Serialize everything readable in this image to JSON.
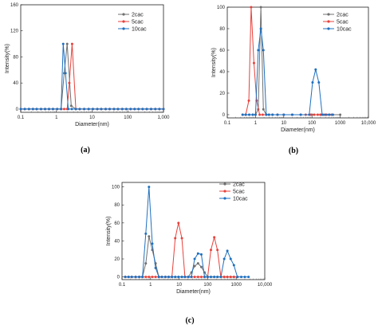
{
  "chart_data": [
    {
      "type": "line",
      "caption": "(a)",
      "xlabel": "Diameter(nm)",
      "ylabel": "Intensity(%)",
      "xscale": "log",
      "xlim": [
        0.1,
        1000
      ],
      "ylim": [
        -5,
        160
      ],
      "x_ticks": [
        0.1,
        1,
        10,
        100,
        1000
      ],
      "x_tick_labels": [
        "0.1",
        "1",
        "10",
        "100",
        "1,000"
      ],
      "y_ticks": [
        0,
        40,
        80,
        120,
        160
      ],
      "legend_position": "top-right",
      "series": [
        {
          "name": "2cac",
          "color": "#707070",
          "x": [
            0.1,
            0.13,
            0.17,
            0.22,
            0.28,
            0.37,
            0.48,
            0.62,
            0.8,
            1.05,
            1.35,
            1.65,
            2.0,
            2.6,
            3.5,
            4.5,
            6,
            8,
            10.5,
            14,
            18,
            24,
            31,
            41,
            53,
            70,
            91,
            120,
            155,
            200,
            260,
            340,
            450,
            590,
            770,
            1000
          ],
          "y": [
            0,
            0,
            0,
            0,
            0,
            0,
            0,
            0,
            0,
            0,
            0,
            55,
            100,
            5,
            0,
            0,
            0,
            0,
            0,
            0,
            0,
            0,
            0,
            0,
            0,
            0,
            0,
            0,
            0,
            0,
            0,
            0,
            0,
            0,
            0,
            0
          ]
        },
        {
          "name": "5cac",
          "color": "#e8413b",
          "x": [
            0.1,
            0.13,
            0.17,
            0.22,
            0.28,
            0.37,
            0.48,
            0.62,
            0.8,
            1.05,
            1.35,
            1.65,
            2.0,
            2.3,
            2.75,
            3.5,
            4.5,
            6,
            8,
            10.5,
            14,
            18,
            24,
            31,
            41,
            53,
            70,
            91,
            120,
            155,
            200,
            260,
            340,
            450,
            590,
            770,
            1000
          ],
          "y": [
            0,
            0,
            0,
            0,
            0,
            0,
            0,
            0,
            0,
            0,
            0,
            0,
            0,
            40,
            100,
            0,
            0,
            0,
            0,
            0,
            0,
            0,
            0,
            0,
            0,
            0,
            0,
            0,
            0,
            0,
            0,
            0,
            0,
            0,
            0,
            0,
            0
          ]
        },
        {
          "name": "10cac",
          "color": "#1e70c0",
          "x": [
            0.1,
            0.13,
            0.17,
            0.22,
            0.28,
            0.37,
            0.48,
            0.62,
            0.8,
            1.05,
            1.35,
            1.55,
            1.8,
            2.15,
            2.7,
            3.5,
            4.5,
            6,
            8,
            10.5,
            14,
            18,
            24,
            31,
            41,
            53,
            70,
            91,
            120,
            155,
            200,
            260,
            340,
            450,
            590,
            770,
            1000
          ],
          "y": [
            0,
            0,
            0,
            0,
            0,
            0,
            0,
            0,
            0,
            0,
            0,
            100,
            55,
            0,
            0,
            0,
            0,
            0,
            0,
            0,
            0,
            0,
            0,
            0,
            0,
            0,
            0,
            0,
            0,
            0,
            0,
            0,
            0,
            0,
            0,
            0,
            0
          ]
        }
      ]
    },
    {
      "type": "line",
      "caption": "(b)",
      "xlabel": "Diameter(nm)",
      "ylabel": "Intensity(%)",
      "xscale": "log",
      "xlim": [
        0.1,
        10000
      ],
      "ylim": [
        -3,
        100
      ],
      "x_ticks": [
        0.1,
        1,
        10,
        100,
        1000,
        10000
      ],
      "x_tick_labels": [
        "0.1",
        "1",
        "10",
        "100",
        "1000",
        "10,000"
      ],
      "y_ticks": [
        0,
        20,
        40,
        60,
        80,
        100
      ],
      "legend_position": "top-right",
      "series": [
        {
          "name": "2cac",
          "color": "#707070",
          "x": [
            0.35,
            0.45,
            0.6,
            0.8,
            1.0,
            1.25,
            1.55,
            1.9,
            2.4,
            3.0,
            4,
            6,
            10,
            20,
            40,
            100,
            200,
            500,
            1000
          ],
          "y": [
            0,
            0,
            0,
            0,
            0,
            5,
            100,
            5,
            0,
            0,
            0,
            0,
            0,
            0,
            0,
            0,
            0,
            0,
            0
          ]
        },
        {
          "name": "5cac",
          "color": "#e8413b",
          "x": [
            0.35,
            0.45,
            0.58,
            0.7,
            0.88,
            1.1,
            1.4,
            1.8,
            2.4,
            3.0,
            4,
            6,
            10,
            20,
            40,
            60,
            90,
            120,
            160,
            200,
            260,
            330,
            420,
            550
          ],
          "y": [
            0,
            0,
            13,
            100,
            48,
            13,
            0,
            0,
            0,
            0,
            0,
            0,
            0,
            0,
            0,
            0,
            0,
            0,
            0,
            0,
            0,
            0,
            0,
            0
          ]
        },
        {
          "name": "10cac",
          "color": "#1e70c0",
          "x": [
            0.35,
            0.45,
            0.6,
            0.8,
            1.0,
            1.25,
            1.55,
            1.9,
            2.4,
            3.0,
            4,
            6,
            10,
            20,
            40,
            80,
            105,
            135,
            175,
            230,
            300,
            400,
            550
          ],
          "y": [
            0,
            0,
            0,
            0,
            0,
            60,
            80,
            60,
            0,
            0,
            0,
            0,
            0,
            0,
            0,
            0,
            30,
            42,
            30,
            0,
            0,
            0,
            0
          ]
        }
      ]
    },
    {
      "type": "line",
      "caption": "(c)",
      "xlabel": "Diameter(nm)",
      "ylabel": "Intensity(%)",
      "xscale": "log",
      "xlim": [
        0.1,
        10000
      ],
      "ylim": [
        -3,
        105
      ],
      "x_ticks": [
        0.1,
        1,
        10,
        100,
        1000,
        10000
      ],
      "x_tick_labels": [
        "0.1",
        "1",
        "10",
        "100",
        "1000",
        "10,000"
      ],
      "y_ticks": [
        0,
        20,
        40,
        60,
        80,
        100
      ],
      "legend_position": "top-right",
      "series": [
        {
          "name": "2cac",
          "color": "#707070",
          "x": [
            0.13,
            0.17,
            0.22,
            0.3,
            0.4,
            0.52,
            0.68,
            0.88,
            1.15,
            1.5,
            1.95,
            2.5,
            3.3,
            4.3,
            5.6,
            7.3,
            9.5,
            12.5,
            16,
            21,
            27,
            35,
            46,
            60,
            78,
            100,
            130,
            170,
            220,
            290,
            380,
            490,
            640,
            830,
            1100
          ],
          "y": [
            0,
            0,
            0,
            0,
            0,
            0,
            15,
            45,
            30,
            15,
            0,
            0,
            0,
            0,
            0,
            0,
            0,
            0,
            0,
            0,
            5,
            12,
            15,
            11,
            5,
            0,
            0,
            0,
            0,
            0,
            0,
            0,
            0,
            0,
            0
          ]
        },
        {
          "name": "5cac",
          "color": "#e8413b",
          "x": [
            0.13,
            0.17,
            0.22,
            0.3,
            0.4,
            0.52,
            0.68,
            0.88,
            1.15,
            1.5,
            1.95,
            2.5,
            3.3,
            4.3,
            5.6,
            7.3,
            9.5,
            12.5,
            16,
            21,
            27,
            35,
            46,
            60,
            78,
            100,
            130,
            170,
            220,
            290,
            380,
            490,
            640,
            830,
            1100
          ],
          "y": [
            0,
            0,
            0,
            0,
            0,
            0,
            0,
            0,
            0,
            0,
            0,
            0,
            0,
            0,
            0,
            43,
            60,
            43,
            0,
            0,
            0,
            0,
            0,
            0,
            0,
            0,
            30,
            44,
            30,
            0,
            0,
            0,
            0,
            0,
            0
          ]
        },
        {
          "name": "10cac",
          "color": "#1e70c0",
          "x": [
            0.13,
            0.17,
            0.22,
            0.3,
            0.4,
            0.52,
            0.68,
            0.88,
            1.15,
            1.5,
            1.95,
            2.5,
            3.3,
            4.3,
            5.6,
            7.3,
            9.5,
            12.5,
            16,
            21,
            27,
            35,
            46,
            60,
            78,
            100,
            130,
            170,
            220,
            290,
            380,
            490,
            640,
            830,
            1100,
            1500,
            2000,
            2700
          ],
          "y": [
            0,
            0,
            0,
            0,
            0,
            0,
            48,
            100,
            37,
            10,
            0,
            0,
            0,
            0,
            0,
            0,
            0,
            0,
            0,
            0,
            0,
            20,
            26,
            25,
            0,
            0,
            0,
            0,
            0,
            0,
            20,
            29,
            20,
            13,
            0,
            0,
            0,
            0
          ]
        }
      ]
    }
  ]
}
